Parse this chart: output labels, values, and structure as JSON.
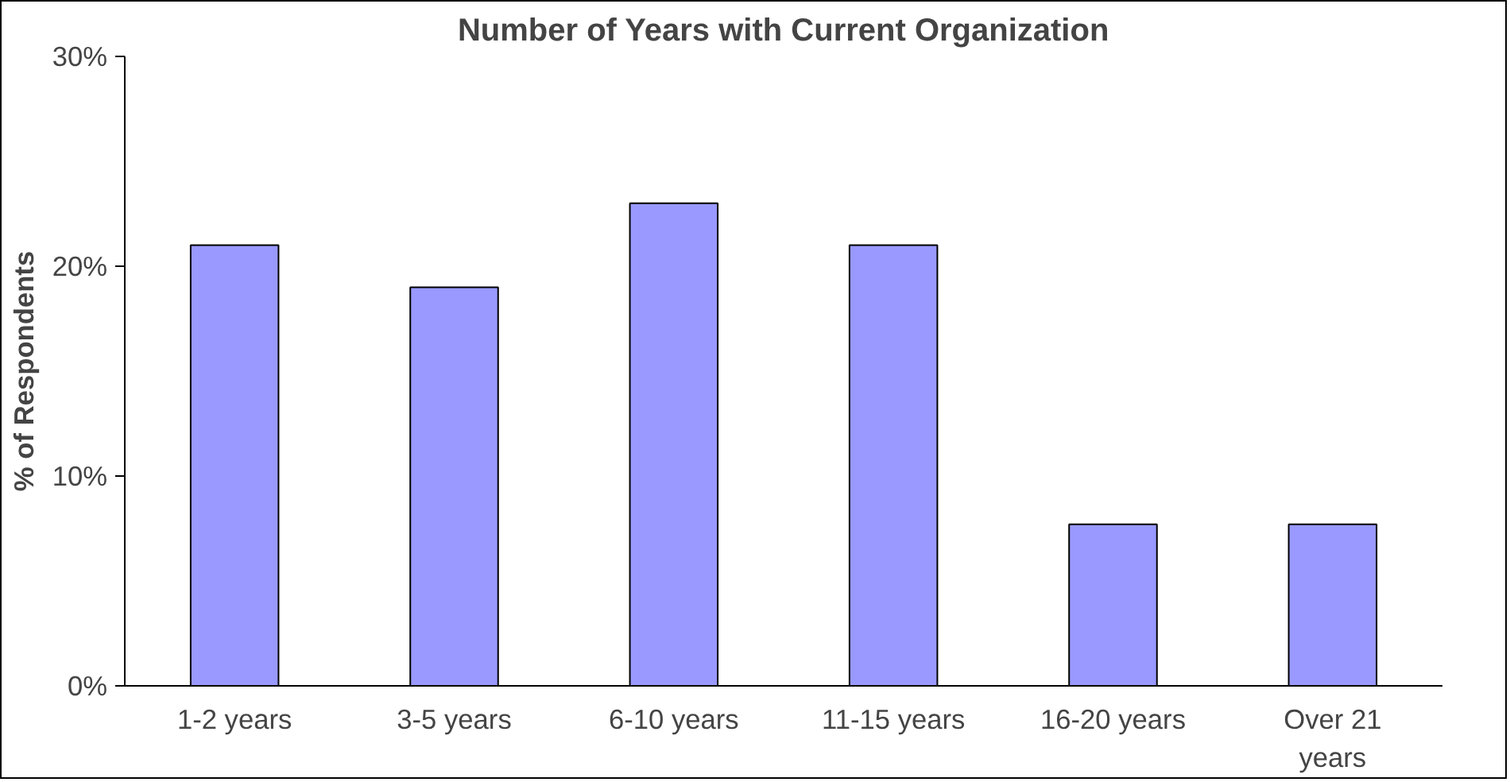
{
  "chart_data": {
    "type": "bar",
    "title": "Number of Years with Current Organization",
    "ylabel": "% of Respondents",
    "categories": [
      "1-2 years",
      "3-5 years",
      "6-10 years",
      "11-15 years",
      "16-20 years",
      "Over 21 years"
    ],
    "values": [
      21,
      19,
      23,
      21,
      7.7,
      7.7
    ],
    "color": "#9999ff",
    "ylim": [
      0,
      30
    ],
    "yticks": [
      {
        "value": 0,
        "label": "0%"
      },
      {
        "value": 10,
        "label": "10%"
      },
      {
        "value": 20,
        "label": "20%"
      },
      {
        "value": 30,
        "label": "30%"
      }
    ],
    "grid": false
  }
}
